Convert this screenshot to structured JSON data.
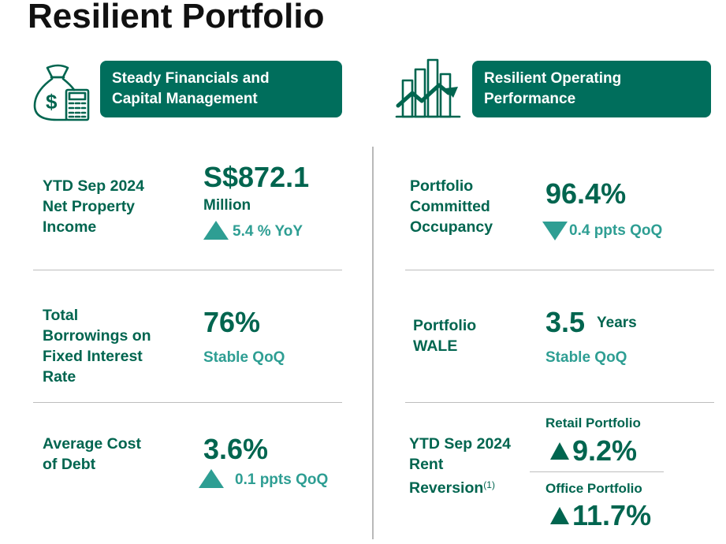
{
  "page_title": "Resilient Portfolio",
  "left": {
    "banner_line1": "Steady Financials and",
    "banner_line2": "Capital Management",
    "icon": "money-bag-calculator-icon",
    "npi": {
      "label_line1": "YTD Sep 2024",
      "label_line2": "Net Property",
      "label_line3": "Income",
      "value": "S$872.1",
      "unit": "Million",
      "change": "5.4 % YoY"
    },
    "fixed_rate": {
      "label_line1": "Total",
      "label_line2": "Borrowings on",
      "label_line3": "Fixed Interest",
      "label_line4": "Rate",
      "value": "76%",
      "change": "Stable QoQ"
    },
    "cost_of_debt": {
      "label_line1": "Average Cost",
      "label_line2": "of Debt",
      "value": "3.6%",
      "change": "0.1 ppts QoQ"
    }
  },
  "right": {
    "banner_line1": "Resilient Operating",
    "banner_line2": "Performance",
    "icon": "bar-chart-arrow-icon",
    "occupancy": {
      "label_line1": "Portfolio",
      "label_line2": "Committed",
      "label_line3": "Occupancy",
      "value": "96.4%",
      "change": "0.4 ppts QoQ"
    },
    "wale": {
      "label_line1": "Portfolio",
      "label_line2": "WALE",
      "value": "3.5",
      "unit": "Years",
      "change": "Stable QoQ"
    },
    "rent_reversion": {
      "label_line1": "YTD Sep 2024",
      "label_line2": "Rent",
      "label_line3": "Reversion",
      "footnote": "(1)",
      "retail_label": "Retail Portfolio",
      "retail_value": "9.2%",
      "office_label": "Office Portfolio",
      "office_value": "11.7%"
    }
  },
  "colors": {
    "brand_green": "#006e5c",
    "text_green": "#00654f",
    "teal": "#2e9e93"
  }
}
